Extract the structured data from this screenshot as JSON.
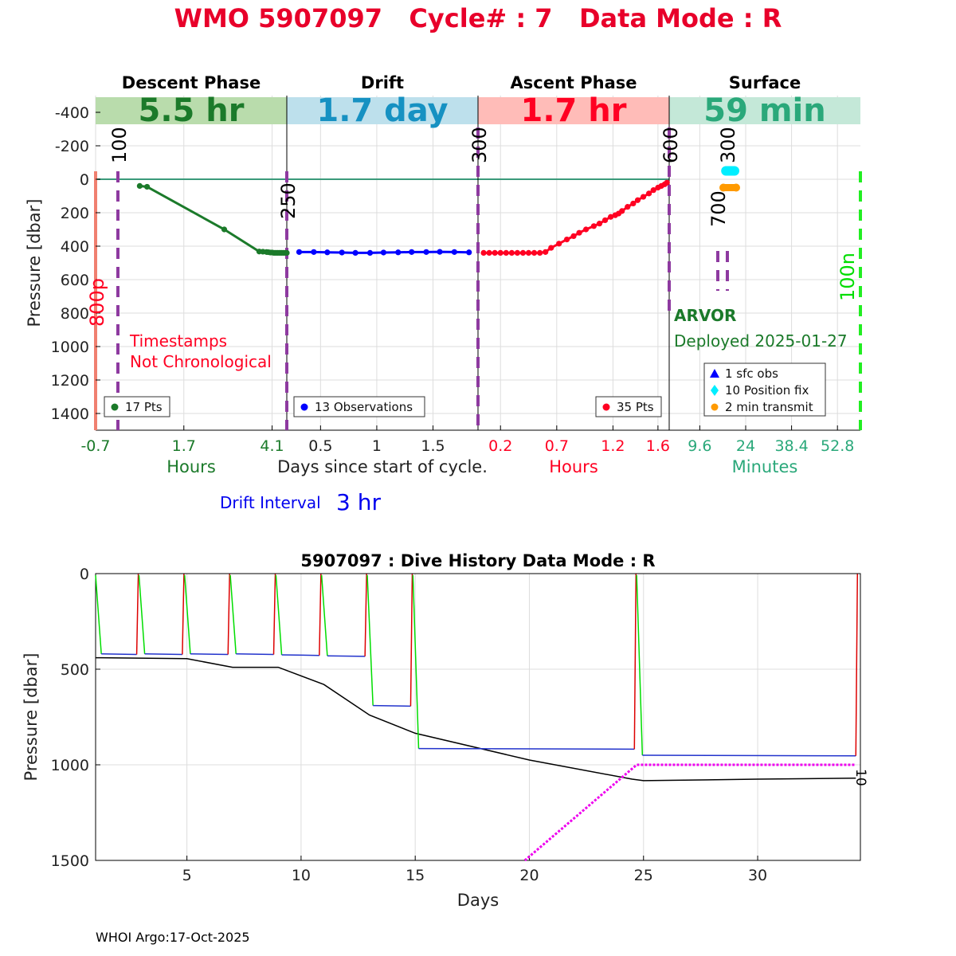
{
  "page_title": "WMO 5907097   Cycle# : 7   Data Mode : R",
  "footer": "WHOI Argo:17-Oct-2025",
  "colors": {
    "title_red": "#e8002a",
    "descent_green": "#1b7a2a",
    "drift_blue": "#0000ff",
    "ascent_red": "#ff0022",
    "surface_teal": "#2aa87a",
    "dashed_purple": "#8e3aa0",
    "grid": "#dddddd",
    "history_green": "#00dd00",
    "history_red": "#dd0000",
    "history_magenta": "#ee00ee"
  },
  "chart_data": [
    {
      "type": "line",
      "ylabel": "Pressure [dbar]",
      "xlabel": "Days since start of cycle.",
      "ylim": [
        -500,
        1500
      ],
      "yticks": [
        -400,
        -200,
        0,
        200,
        400,
        600,
        800,
        1000,
        1200,
        1400
      ],
      "grid": true,
      "phase_headers": [
        "Descent Phase",
        "Drift",
        "Ascent Phase",
        "Surface"
      ],
      "phase_durations": [
        "5.5 hr",
        "1.7 day",
        "1.7 hr",
        "59 min"
      ],
      "panel_unit_labels": [
        "Hours",
        "",
        "Hours",
        "Minutes"
      ],
      "panels": [
        {
          "name": "Descent",
          "xlim": [
            -0.7,
            4.5
          ],
          "xticks": [
            "-0.7",
            "1.7",
            "4.1"
          ],
          "xtick_values": [
            -0.7,
            1.7,
            4.1
          ],
          "legend": "17 Pts",
          "x": [
            0.5,
            0.7,
            2.8,
            3.75,
            3.95,
            4.05,
            4.15,
            4.25,
            4.35,
            4.45,
            3.85,
            4.0,
            4.1,
            4.2,
            4.3,
            4.4,
            4.5
          ],
          "y": [
            40,
            45,
            300,
            432,
            435,
            438,
            440,
            440,
            440,
            440,
            433,
            436,
            438,
            440,
            440,
            440,
            440
          ]
        },
        {
          "name": "Drift",
          "xlim": [
            0.2,
            1.9
          ],
          "xticks": [
            "0.5",
            "1",
            "1.5"
          ],
          "xtick_values": [
            0.5,
            1.0,
            1.5
          ],
          "legend": "13 Observations",
          "x": [
            0.31,
            0.44,
            0.56,
            0.69,
            0.81,
            0.94,
            1.06,
            1.19,
            1.31,
            1.44,
            1.56,
            1.69,
            1.82
          ],
          "y": [
            435,
            435,
            437,
            438,
            440,
            440,
            438,
            437,
            435,
            435,
            434,
            435,
            437
          ]
        },
        {
          "name": "Ascent",
          "xlim": [
            0.0,
            1.7
          ],
          "xticks": [
            "0.2",
            "0.7",
            "1.2",
            "1.6"
          ],
          "xtick_values": [
            0.2,
            0.7,
            1.2,
            1.6
          ],
          "legend": "35 Pts",
          "x": [
            0.05,
            0.1,
            0.15,
            0.2,
            0.25,
            0.3,
            0.35,
            0.4,
            0.45,
            0.5,
            0.55,
            0.6,
            0.65,
            0.72,
            0.79,
            0.85,
            0.9,
            0.96,
            1.03,
            1.08,
            1.13,
            1.18,
            1.22,
            1.25,
            1.28,
            1.33,
            1.38,
            1.42,
            1.47,
            1.52,
            1.56,
            1.6,
            1.63,
            1.66,
            1.68
          ],
          "y": [
            440,
            440,
            440,
            440,
            440,
            440,
            440,
            440,
            440,
            440,
            440,
            435,
            410,
            385,
            360,
            340,
            320,
            300,
            280,
            265,
            245,
            225,
            215,
            205,
            190,
            165,
            145,
            125,
            105,
            85,
            65,
            50,
            40,
            30,
            20
          ]
        },
        {
          "name": "Surface",
          "xlim": [
            0,
            60
          ],
          "xticks": [
            "9.6",
            "24",
            "38.4",
            "52.8"
          ],
          "xtick_values": [
            9.6,
            24,
            38.4,
            52.8
          ],
          "legend": [
            "1 sfc obs",
            "10 Position fix",
            "2 min transmit"
          ],
          "position_fix_x": [
            17.8,
            18.1,
            18.4,
            18.7,
            19.0,
            19.3,
            19.6,
            19.9,
            20.2,
            20.5
          ],
          "position_fix_y": [
            -50,
            -50,
            -50,
            -50,
            -50,
            -50,
            -50,
            -50,
            -50,
            -50
          ],
          "transmit_x": [
            17,
            21
          ],
          "transmit_y": [
            50,
            50
          ]
        }
      ],
      "vertical_annotations": [
        "100",
        "250",
        "300",
        "600",
        "300",
        "700",
        "800p",
        "100n"
      ],
      "notes": {
        "timestamps_line1": "Timestamps",
        "timestamps_line2": "Not Chronological",
        "float_model": "ARVOR",
        "deployed": "Deployed 2025-01-27",
        "drift_interval_label": "Drift Interval",
        "drift_interval_value": "3 hr"
      }
    },
    {
      "type": "line",
      "title": "5907097 : Dive History      Data Mode : R",
      "xlabel": "Days",
      "ylabel": "Pressure [dbar]",
      "xlim": [
        1,
        34.5
      ],
      "ylim": [
        0,
        1500
      ],
      "xticks": [
        5,
        10,
        15,
        20,
        25,
        30
      ],
      "yticks": [
        0,
        500,
        1000,
        1500
      ],
      "grid": true,
      "end_label": "10",
      "cycles": [
        {
          "start": 1.0,
          "drift_end": 2.8,
          "drift_p": 420
        },
        {
          "start": 2.9,
          "drift_end": 4.8,
          "drift_p": 420
        },
        {
          "start": 4.9,
          "drift_end": 6.8,
          "drift_p": 420
        },
        {
          "start": 6.9,
          "drift_end": 8.8,
          "drift_p": 420
        },
        {
          "start": 8.9,
          "drift_end": 10.8,
          "drift_p": 425
        },
        {
          "start": 10.9,
          "drift_end": 12.8,
          "drift_p": 430
        },
        {
          "start": 12.9,
          "drift_end": 14.8,
          "drift_p": 690
        },
        {
          "start": 14.9,
          "drift_end": 24.6,
          "drift_p": 915
        },
        {
          "start": 24.7,
          "drift_end": 34.3,
          "drift_p": 950
        }
      ],
      "bottom_depth": {
        "x": [
          1,
          5,
          7,
          9,
          11,
          13,
          15,
          20,
          24.5,
          25,
          30,
          34.3
        ],
        "y": [
          440,
          445,
          490,
          490,
          580,
          740,
          835,
          975,
          1075,
          1083,
          1075,
          1070
        ]
      },
      "max_pressure_line": {
        "x": [
          19.8,
          24.7,
          34.3
        ],
        "y": [
          1500,
          1000,
          1000
        ]
      }
    }
  ]
}
